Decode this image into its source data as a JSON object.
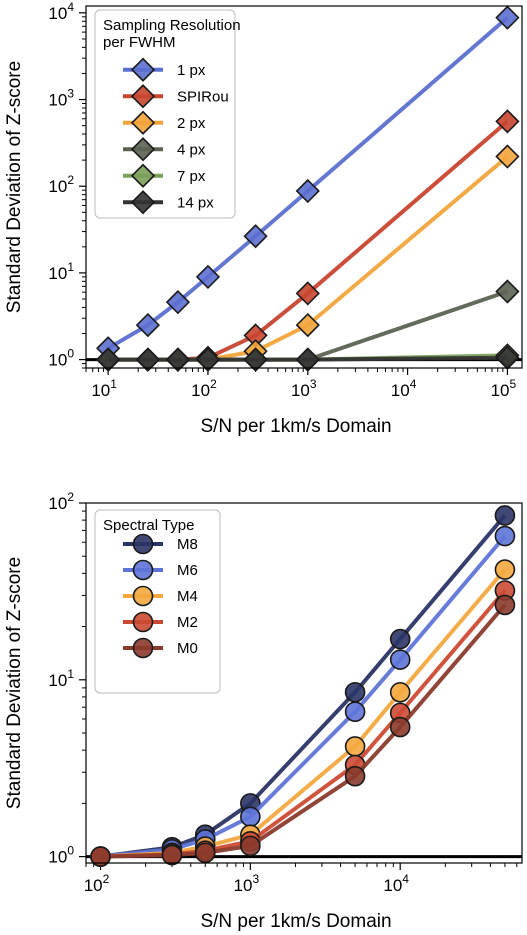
{
  "chart_data": [
    {
      "type": "line",
      "xlabel": "S/N per 1km/s Domain",
      "ylabel": "Standard Deviation of Z-score",
      "xscale": "log",
      "yscale": "log",
      "xlim": [
        6,
        140000
      ],
      "ylim": [
        0.8,
        12000
      ],
      "xticks": [
        10,
        100,
        1000,
        10000,
        100000
      ],
      "xtick_labels": [
        {
          "base": "10",
          "exp": "1"
        },
        {
          "base": "10",
          "exp": "2"
        },
        {
          "base": "10",
          "exp": "3"
        },
        {
          "base": "10",
          "exp": "4"
        },
        {
          "base": "10",
          "exp": "5"
        }
      ],
      "yticks": [
        1,
        10,
        100,
        1000,
        10000
      ],
      "ytick_labels": [
        {
          "base": "10",
          "exp": "0"
        },
        {
          "base": "10",
          "exp": "1"
        },
        {
          "base": "10",
          "exp": "2"
        },
        {
          "base": "10",
          "exp": "3"
        },
        {
          "base": "10",
          "exp": "4"
        }
      ],
      "reference_line": 1,
      "marker": "diamond",
      "legend": {
        "title": "Sampling Resolution\nper FWHM",
        "location": "upper-left"
      },
      "series": [
        {
          "name": "1 px",
          "color": "#5b6fd0",
          "x": [
            10,
            25,
            50,
            100,
            300,
            1000,
            100000
          ],
          "y": [
            1.35,
            2.5,
            4.6,
            9.0,
            26.5,
            88,
            8800
          ]
        },
        {
          "name": "SPIRou",
          "color": "#c8452f",
          "x": [
            10,
            25,
            50,
            100,
            300,
            1000,
            100000
          ],
          "y": [
            1.0,
            1.0,
            1.0,
            1.05,
            1.9,
            5.8,
            560
          ]
        },
        {
          "name": "2 px",
          "color": "#f2a43a",
          "x": [
            10,
            25,
            50,
            100,
            300,
            1000,
            100000
          ],
          "y": [
            1.0,
            1.0,
            1.0,
            1.0,
            1.25,
            2.5,
            220
          ]
        },
        {
          "name": "4 px",
          "color": "#5b6352",
          "x": [
            10,
            25,
            50,
            100,
            300,
            1000,
            100000
          ],
          "y": [
            1.0,
            1.0,
            1.0,
            1.0,
            1.0,
            1.0,
            6.1
          ]
        },
        {
          "name": "7 px",
          "color": "#7aa05a",
          "x": [
            10,
            25,
            50,
            100,
            300,
            1000,
            100000
          ],
          "y": [
            1.0,
            1.0,
            1.0,
            1.0,
            1.0,
            1.0,
            1.12
          ]
        },
        {
          "name": "14 px",
          "color": "#333333",
          "x": [
            10,
            25,
            50,
            100,
            300,
            1000,
            100000
          ],
          "y": [
            1.0,
            1.0,
            1.0,
            1.0,
            1.0,
            1.0,
            1.05
          ]
        }
      ]
    },
    {
      "type": "line",
      "xlabel": "S/N per 1km/s Domain",
      "ylabel": "Standard Deviation of Z-score",
      "xscale": "log",
      "yscale": "log",
      "xlim": [
        80,
        65000
      ],
      "ylim": [
        0.92,
        100
      ],
      "xticks": [
        100,
        1000,
        10000
      ],
      "xtick_labels": [
        {
          "base": "10",
          "exp": "2"
        },
        {
          "base": "10",
          "exp": "3"
        },
        {
          "base": "10",
          "exp": "4"
        }
      ],
      "yticks": [
        1,
        10,
        100
      ],
      "ytick_labels": [
        {
          "base": "10",
          "exp": "0"
        },
        {
          "base": "10",
          "exp": "1"
        },
        {
          "base": "10",
          "exp": "2"
        }
      ],
      "reference_line": 1,
      "marker": "circle",
      "legend": {
        "title": "Spectral Type",
        "location": "upper-left"
      },
      "series": [
        {
          "name": "M8",
          "color": "#2b3466",
          "x": [
            100,
            300,
            500,
            1000,
            5000,
            10000,
            50000
          ],
          "y": [
            1.0,
            1.13,
            1.33,
            2.0,
            8.5,
            17,
            85
          ]
        },
        {
          "name": "M6",
          "color": "#5e74d8",
          "x": [
            100,
            300,
            500,
            1000,
            5000,
            10000,
            50000
          ],
          "y": [
            1.0,
            1.1,
            1.25,
            1.68,
            6.6,
            13,
            65
          ]
        },
        {
          "name": "M4",
          "color": "#f4a83e",
          "x": [
            100,
            300,
            500,
            1000,
            5000,
            10000,
            50000
          ],
          "y": [
            1.0,
            1.05,
            1.14,
            1.33,
            4.2,
            8.5,
            42
          ]
        },
        {
          "name": "M2",
          "color": "#cc4a33",
          "x": [
            100,
            300,
            500,
            1000,
            5000,
            10000,
            50000
          ],
          "y": [
            1.0,
            1.03,
            1.08,
            1.22,
            3.3,
            6.5,
            32
          ]
        },
        {
          "name": "M0",
          "color": "#8a3b2c",
          "x": [
            100,
            300,
            500,
            1000,
            5000,
            10000,
            50000
          ],
          "y": [
            1.0,
            1.02,
            1.05,
            1.15,
            2.85,
            5.4,
            26.5
          ]
        }
      ]
    }
  ]
}
